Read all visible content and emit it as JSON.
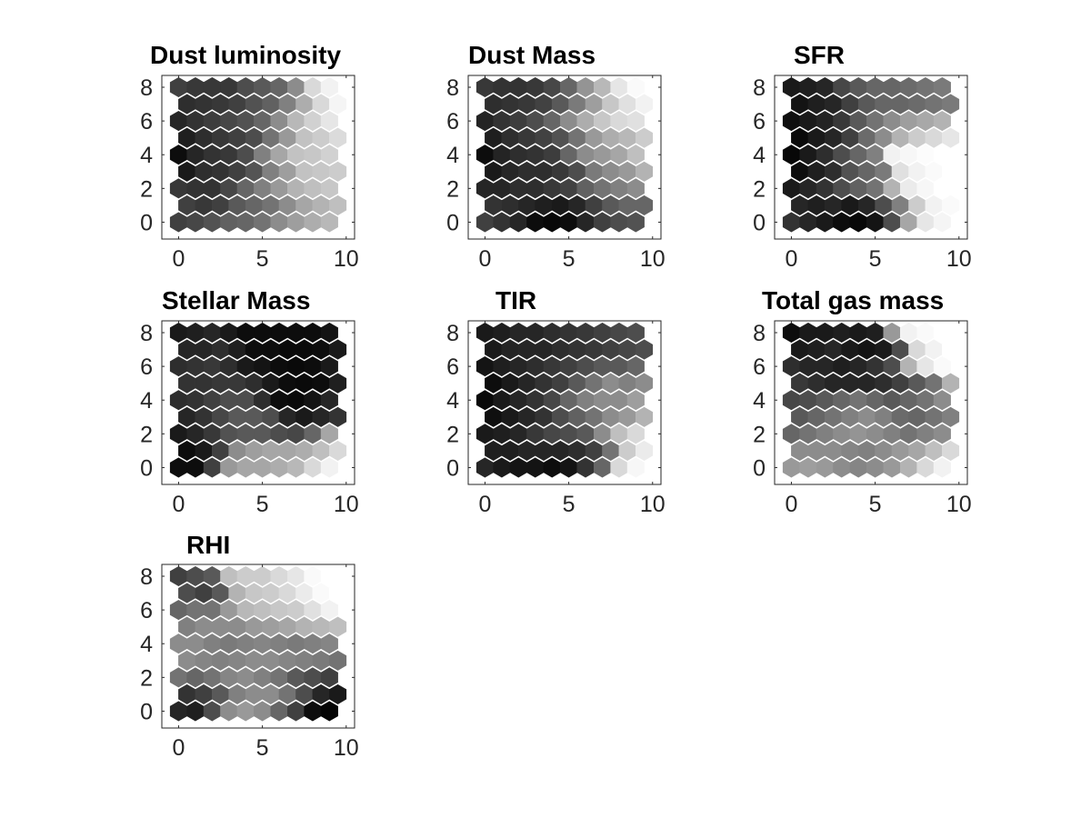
{
  "figure": {
    "type": "som-component-planes",
    "colormap": "gray"
  },
  "chart_data": [
    {
      "type": "heatmap",
      "title": "Dust luminosity",
      "xlim": [
        -1,
        10.5
      ],
      "ylim": [
        -1,
        8.7
      ],
      "xticks": [
        0,
        5,
        10
      ],
      "yticks": [
        0,
        2,
        4,
        6,
        8
      ],
      "grid": false,
      "rows": [
        [
          0.25,
          0.22,
          0.22,
          0.22,
          0.3,
          0.35,
          0.4,
          0.55,
          0.85,
          0.95
        ],
        [
          0.18,
          0.2,
          0.22,
          0.25,
          0.32,
          0.38,
          0.5,
          0.68,
          0.85,
          0.96
        ],
        [
          0.15,
          0.2,
          0.24,
          0.28,
          0.32,
          0.4,
          0.55,
          0.72,
          0.82,
          0.9
        ],
        [
          0.12,
          0.18,
          0.22,
          0.25,
          0.3,
          0.45,
          0.6,
          0.76,
          0.8,
          0.86
        ],
        [
          0.05,
          0.15,
          0.2,
          0.22,
          0.3,
          0.5,
          0.65,
          0.76,
          0.78,
          0.82
        ],
        [
          0.1,
          0.18,
          0.2,
          0.25,
          0.33,
          0.5,
          0.62,
          0.76,
          0.78,
          0.8
        ],
        [
          0.22,
          0.2,
          0.2,
          0.28,
          0.4,
          0.5,
          0.6,
          0.7,
          0.75,
          0.78
        ],
        [
          0.25,
          0.22,
          0.25,
          0.35,
          0.4,
          0.45,
          0.55,
          0.65,
          0.7,
          0.75
        ],
        [
          0.25,
          0.28,
          0.32,
          0.38,
          0.4,
          0.45,
          0.55,
          0.62,
          0.68,
          0.72
        ]
      ]
    },
    {
      "type": "heatmap",
      "title": "Dust Mass",
      "xlim": [
        -1,
        10.5
      ],
      "ylim": [
        -1,
        8.7
      ],
      "xticks": [
        0,
        5,
        10
      ],
      "yticks": [
        0,
        2,
        4,
        6,
        8
      ],
      "grid": false,
      "rows": [
        [
          0.22,
          0.2,
          0.2,
          0.22,
          0.28,
          0.4,
          0.58,
          0.72,
          0.9,
          0.98
        ],
        [
          0.18,
          0.2,
          0.22,
          0.26,
          0.35,
          0.48,
          0.62,
          0.78,
          0.88,
          0.95
        ],
        [
          0.14,
          0.2,
          0.24,
          0.3,
          0.4,
          0.55,
          0.68,
          0.78,
          0.85,
          0.88
        ],
        [
          0.12,
          0.18,
          0.22,
          0.26,
          0.32,
          0.45,
          0.6,
          0.68,
          0.72,
          0.8
        ],
        [
          0.05,
          0.14,
          0.18,
          0.2,
          0.24,
          0.4,
          0.55,
          0.6,
          0.65,
          0.75
        ],
        [
          0.1,
          0.15,
          0.18,
          0.18,
          0.22,
          0.3,
          0.48,
          0.55,
          0.6,
          0.7
        ],
        [
          0.15,
          0.15,
          0.18,
          0.18,
          0.22,
          0.26,
          0.38,
          0.45,
          0.5,
          0.55
        ],
        [
          0.2,
          0.18,
          0.15,
          0.12,
          0.1,
          0.15,
          0.25,
          0.35,
          0.4,
          0.4
        ],
        [
          0.25,
          0.2,
          0.15,
          0.05,
          0.03,
          0.05,
          0.15,
          0.25,
          0.3,
          0.32
        ]
      ]
    },
    {
      "type": "heatmap",
      "title": "SFR",
      "xlim": [
        -1,
        10.5
      ],
      "ylim": [
        -1,
        8.7
      ],
      "xticks": [
        0,
        5,
        10
      ],
      "yticks": [
        0,
        2,
        4,
        6,
        8
      ],
      "grid": false,
      "rows": [
        [
          0.1,
          0.12,
          0.15,
          0.28,
          0.35,
          0.4,
          0.4,
          0.42,
          0.45,
          0.48
        ],
        [
          0.08,
          0.12,
          0.15,
          0.25,
          0.35,
          0.4,
          0.4,
          0.42,
          0.45,
          0.48
        ],
        [
          0.06,
          0.1,
          0.14,
          0.22,
          0.35,
          0.45,
          0.55,
          0.62,
          0.66,
          0.7
        ],
        [
          0.04,
          0.1,
          0.15,
          0.25,
          0.42,
          0.55,
          0.7,
          0.8,
          0.85,
          0.9
        ],
        [
          0.03,
          0.1,
          0.18,
          0.3,
          0.4,
          0.5,
          0.95,
          0.97,
          0.99,
          1.0
        ],
        [
          0.05,
          0.12,
          0.18,
          0.32,
          0.4,
          0.48,
          0.88,
          0.95,
          0.98,
          1.0
        ],
        [
          0.1,
          0.15,
          0.2,
          0.3,
          0.38,
          0.45,
          0.7,
          0.92,
          0.97,
          1.0
        ],
        [
          0.15,
          0.12,
          0.15,
          0.1,
          0.15,
          0.3,
          0.5,
          0.8,
          0.95,
          0.98
        ],
        [
          0.2,
          0.15,
          0.1,
          0.05,
          0.03,
          0.08,
          0.3,
          0.65,
          0.9,
          0.96
        ]
      ]
    },
    {
      "type": "heatmap",
      "title": "Stellar Mass",
      "xlim": [
        -1,
        10.5
      ],
      "ylim": [
        -1,
        8.7
      ],
      "xticks": [
        0,
        5,
        10
      ],
      "yticks": [
        0,
        2,
        4,
        6,
        8
      ],
      "grid": false,
      "rows": [
        [
          0.1,
          0.12,
          0.15,
          0.1,
          0.05,
          0.05,
          0.05,
          0.05,
          0.05,
          0.08
        ],
        [
          0.15,
          0.15,
          0.18,
          0.12,
          0.05,
          0.05,
          0.04,
          0.04,
          0.05,
          0.1
        ],
        [
          0.18,
          0.2,
          0.22,
          0.18,
          0.1,
          0.08,
          0.05,
          0.04,
          0.05,
          0.1
        ],
        [
          0.2,
          0.2,
          0.22,
          0.22,
          0.18,
          0.1,
          0.05,
          0.04,
          0.05,
          0.12
        ],
        [
          0.18,
          0.2,
          0.25,
          0.3,
          0.3,
          0.18,
          0.05,
          0.04,
          0.08,
          0.15
        ],
        [
          0.15,
          0.2,
          0.28,
          0.35,
          0.35,
          0.3,
          0.15,
          0.1,
          0.15,
          0.2
        ],
        [
          0.1,
          0.15,
          0.22,
          0.32,
          0.35,
          0.35,
          0.3,
          0.28,
          0.4,
          0.65
        ],
        [
          0.05,
          0.1,
          0.25,
          0.55,
          0.62,
          0.65,
          0.65,
          0.68,
          0.75,
          0.85
        ],
        [
          0.05,
          0.05,
          0.25,
          0.6,
          0.65,
          0.65,
          0.68,
          0.72,
          0.85,
          0.95
        ]
      ]
    },
    {
      "type": "heatmap",
      "title": "TIR",
      "xlim": [
        -1,
        10.5
      ],
      "ylim": [
        -1,
        8.7
      ],
      "xticks": [
        0,
        5,
        10
      ],
      "yticks": [
        0,
        2,
        4,
        6,
        8
      ],
      "grid": false,
      "rows": [
        [
          0.1,
          0.12,
          0.15,
          0.15,
          0.18,
          0.2,
          0.22,
          0.25,
          0.28,
          0.3
        ],
        [
          0.1,
          0.14,
          0.15,
          0.15,
          0.18,
          0.2,
          0.22,
          0.25,
          0.28,
          0.3
        ],
        [
          0.08,
          0.12,
          0.15,
          0.18,
          0.22,
          0.25,
          0.3,
          0.35,
          0.35,
          0.4
        ],
        [
          0.05,
          0.1,
          0.15,
          0.2,
          0.25,
          0.35,
          0.45,
          0.55,
          0.5,
          0.55
        ],
        [
          0.04,
          0.1,
          0.15,
          0.2,
          0.28,
          0.4,
          0.5,
          0.55,
          0.55,
          0.62
        ],
        [
          0.06,
          0.1,
          0.15,
          0.2,
          0.3,
          0.38,
          0.45,
          0.55,
          0.6,
          0.7
        ],
        [
          0.1,
          0.12,
          0.15,
          0.22,
          0.28,
          0.3,
          0.35,
          0.55,
          0.75,
          0.85
        ],
        [
          0.12,
          0.12,
          0.15,
          0.15,
          0.15,
          0.18,
          0.25,
          0.45,
          0.8,
          0.92
        ],
        [
          0.15,
          0.1,
          0.08,
          0.08,
          0.05,
          0.08,
          0.2,
          0.4,
          0.85,
          0.97
        ]
      ]
    },
    {
      "type": "heatmap",
      "title": "Total gas mass",
      "xlim": [
        -1,
        10.5
      ],
      "ylim": [
        -1,
        8.7
      ],
      "xticks": [
        0,
        5,
        10
      ],
      "yticks": [
        0,
        2,
        4,
        6,
        8
      ],
      "grid": false,
      "rows": [
        [
          0.05,
          0.1,
          0.1,
          0.12,
          0.1,
          0.12,
          0.6,
          0.95,
          0.98,
          1.0
        ],
        [
          0.1,
          0.12,
          0.15,
          0.1,
          0.08,
          0.1,
          0.3,
          0.85,
          0.95,
          1.0
        ],
        [
          0.18,
          0.15,
          0.15,
          0.12,
          0.15,
          0.2,
          0.3,
          0.7,
          0.9,
          0.98
        ],
        [
          0.22,
          0.18,
          0.15,
          0.15,
          0.15,
          0.18,
          0.25,
          0.35,
          0.45,
          0.7
        ],
        [
          0.28,
          0.3,
          0.35,
          0.4,
          0.45,
          0.4,
          0.35,
          0.4,
          0.45,
          0.55
        ],
        [
          0.35,
          0.4,
          0.45,
          0.5,
          0.55,
          0.5,
          0.42,
          0.4,
          0.45,
          0.5
        ],
        [
          0.4,
          0.45,
          0.5,
          0.55,
          0.58,
          0.55,
          0.5,
          0.45,
          0.5,
          0.55
        ],
        [
          0.55,
          0.55,
          0.55,
          0.52,
          0.5,
          0.55,
          0.6,
          0.65,
          0.75,
          0.85
        ],
        [
          0.6,
          0.62,
          0.6,
          0.55,
          0.52,
          0.55,
          0.6,
          0.7,
          0.85,
          0.95
        ]
      ]
    },
    {
      "type": "heatmap",
      "title": "RHI",
      "xlim": [
        -1,
        10.5
      ],
      "ylim": [
        -1,
        8.7
      ],
      "xticks": [
        0,
        5,
        10
      ],
      "yticks": [
        0,
        2,
        4,
        6,
        8
      ],
      "grid": false,
      "rows": [
        [
          0.25,
          0.3,
          0.35,
          0.75,
          0.8,
          0.8,
          0.85,
          0.9,
          0.98,
          1.0
        ],
        [
          0.3,
          0.25,
          0.35,
          0.7,
          0.78,
          0.8,
          0.85,
          0.92,
          0.98,
          1.0
        ],
        [
          0.4,
          0.45,
          0.45,
          0.6,
          0.72,
          0.75,
          0.78,
          0.8,
          0.88,
          0.95
        ],
        [
          0.5,
          0.55,
          0.55,
          0.55,
          0.6,
          0.62,
          0.65,
          0.7,
          0.72,
          0.75
        ],
        [
          0.55,
          0.55,
          0.5,
          0.48,
          0.5,
          0.52,
          0.5,
          0.48,
          0.5,
          0.52
        ],
        [
          0.55,
          0.52,
          0.5,
          0.52,
          0.55,
          0.55,
          0.52,
          0.5,
          0.48,
          0.45
        ],
        [
          0.45,
          0.4,
          0.45,
          0.52,
          0.55,
          0.5,
          0.45,
          0.35,
          0.3,
          0.25
        ],
        [
          0.2,
          0.25,
          0.35,
          0.5,
          0.55,
          0.55,
          0.45,
          0.3,
          0.15,
          0.1
        ],
        [
          0.15,
          0.12,
          0.3,
          0.55,
          0.6,
          0.55,
          0.4,
          0.25,
          0.05,
          0.02
        ]
      ]
    }
  ]
}
